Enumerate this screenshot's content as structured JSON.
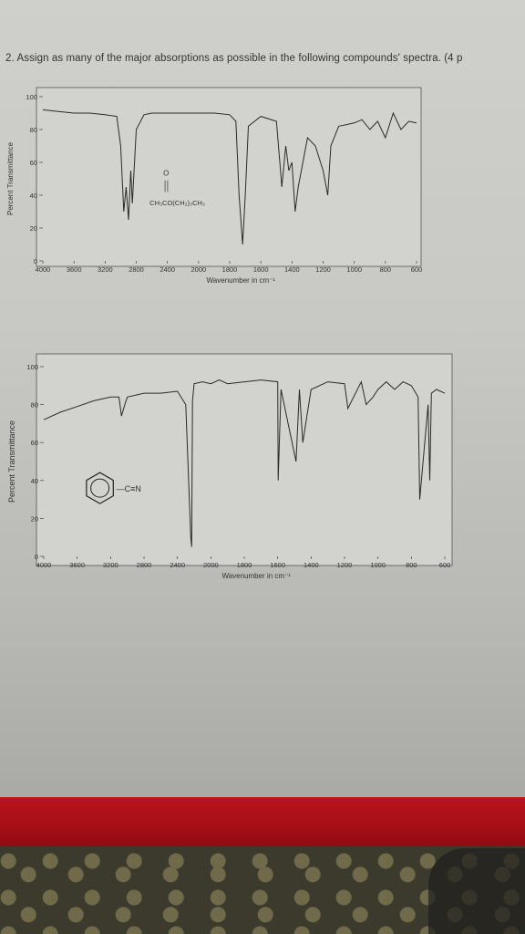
{
  "question": "2. Assign as many of the major absorptions as possible in the following compounds' spectra. (4 p",
  "chart_data": [
    {
      "type": "line",
      "ylabel": "Percent Transmittance",
      "xlabel": "Wavenumber in cm⁻¹",
      "xlim": [
        4000,
        600
      ],
      "ylim": [
        0,
        100
      ],
      "x_ticks": [
        "4000",
        "3600",
        "3200",
        "2800",
        "2400",
        "2000",
        "1800",
        "1600",
        "1400",
        "1200",
        "1000",
        "800",
        "600"
      ],
      "y_ticks": [
        "0",
        "20",
        "40",
        "60",
        "80",
        "100"
      ],
      "molecule_label": "O‖CH₃CO(CH₂)₃CH₃",
      "molecule_carbonyl": "O",
      "molecule_formula": "CH₃CO(CH₂)₃CH₃",
      "grid": false,
      "series": [
        {
          "x": [
            4000,
            3800,
            3600,
            3400,
            3200,
            3050,
            3000,
            2960,
            2930,
            2900,
            2870,
            2850,
            2800,
            2700,
            2600,
            2400,
            2200,
            2000,
            1900,
            1800,
            1760,
            1740,
            1717,
            1700,
            1680,
            1600,
            1500,
            1465,
            1440,
            1420,
            1400,
            1380,
            1360,
            1300,
            1250,
            1200,
            1170,
            1150,
            1100,
            1000,
            950,
            900,
            850,
            800,
            750,
            700,
            650,
            600
          ],
          "y": [
            92,
            91,
            90,
            90,
            89,
            88,
            70,
            30,
            45,
            25,
            55,
            35,
            80,
            89,
            90,
            90,
            90,
            90,
            90,
            89,
            85,
            40,
            10,
            40,
            82,
            88,
            85,
            45,
            70,
            55,
            60,
            30,
            45,
            75,
            70,
            55,
            40,
            70,
            82,
            84,
            86,
            80,
            85,
            75,
            90,
            80,
            85,
            84
          ]
        }
      ]
    },
    {
      "type": "line",
      "ylabel": "Percent Transmittance",
      "xlabel": "Wavenumber in cm⁻¹",
      "xlim": [
        4000,
        600
      ],
      "ylim": [
        0,
        100
      ],
      "x_ticks": [
        "4000",
        "3600",
        "3200",
        "2800",
        "2400",
        "2000",
        "1800",
        "1600",
        "1400",
        "1200",
        "1000",
        "800",
        "600"
      ],
      "y_ticks": [
        "0",
        "20",
        "40",
        "60",
        "80",
        "100"
      ],
      "molecule_label": "—C≡N",
      "grid": false,
      "series": [
        {
          "x": [
            4000,
            3800,
            3600,
            3400,
            3200,
            3100,
            3070,
            3030,
            3000,
            2800,
            2600,
            2400,
            2300,
            2240,
            2229,
            2220,
            2200,
            2100,
            2000,
            1950,
            1900,
            1800,
            1700,
            1600,
            1597,
            1580,
            1490,
            1470,
            1450,
            1400,
            1300,
            1200,
            1180,
            1100,
            1070,
            1030,
            1000,
            950,
            900,
            850,
            800,
            760,
            750,
            700,
            690,
            680,
            650,
            600
          ],
          "y": [
            72,
            76,
            79,
            82,
            84,
            84,
            74,
            80,
            84,
            86,
            86,
            87,
            80,
            10,
            5,
            82,
            91,
            92,
            91,
            93,
            91,
            92,
            93,
            92,
            40,
            88,
            50,
            88,
            60,
            88,
            92,
            91,
            78,
            92,
            80,
            84,
            88,
            92,
            88,
            92,
            90,
            84,
            30,
            80,
            40,
            86,
            88,
            86
          ]
        }
      ]
    }
  ]
}
